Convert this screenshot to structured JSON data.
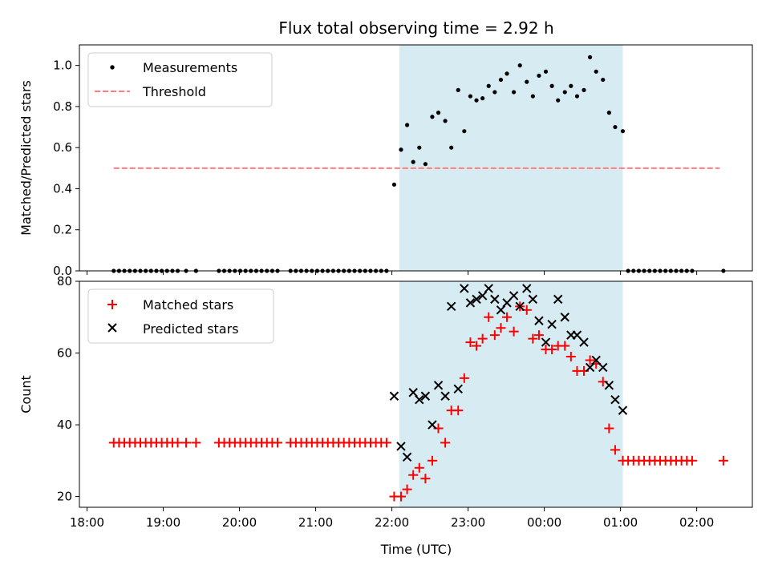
{
  "chart_data": {
    "title": "Flux total observing time = 2.92 h",
    "xlabel": "Time (UTC)",
    "x_tick_labels": [
      "18:00",
      "19:00",
      "20:00",
      "21:00",
      "22:00",
      "23:00",
      "00:00",
      "01:00",
      "02:00"
    ],
    "x_tick_hours": [
      18,
      19,
      20,
      21,
      22,
      23,
      24,
      25,
      26
    ],
    "xlim_hours": [
      17.9,
      26.73
    ],
    "shaded_span_hours": [
      22.1,
      25.03
    ],
    "shade_color": "#add8e6",
    "panels": [
      {
        "type": "scatter",
        "ylabel": "Matched/Predicted stars",
        "ylim": [
          0,
          1.1
        ],
        "y_ticks": [
          "0.0",
          "0.2",
          "0.4",
          "0.6",
          "0.8",
          "1.0"
        ],
        "y_tick_values": [
          0,
          0.2,
          0.4,
          0.6,
          0.8,
          1.0
        ],
        "legend_position": "upper-left",
        "series": [
          {
            "name": "Measurements",
            "marker": "dot",
            "color": "#000000",
            "x": [
              18.35,
              18.42,
              18.49,
              18.56,
              18.63,
              18.7,
              18.77,
              18.84,
              18.91,
              18.98,
              19.05,
              19.12,
              19.19,
              19.3,
              19.43,
              19.73,
              19.8,
              19.87,
              19.94,
              20.01,
              20.08,
              20.15,
              20.22,
              20.29,
              20.36,
              20.43,
              20.5,
              20.67,
              20.74,
              20.81,
              20.88,
              20.95,
              21.02,
              21.09,
              21.16,
              21.23,
              21.3,
              21.37,
              21.44,
              21.51,
              21.58,
              21.65,
              21.72,
              21.79,
              21.86,
              21.93,
              22.03,
              22.12,
              22.2,
              22.28,
              22.36,
              22.44,
              22.53,
              22.61,
              22.7,
              22.78,
              22.87,
              22.95,
              23.03,
              23.11,
              23.19,
              23.27,
              23.35,
              23.43,
              23.51,
              23.6,
              23.68,
              23.77,
              23.85,
              23.93,
              24.02,
              24.1,
              24.18,
              24.27,
              24.35,
              24.43,
              24.52,
              24.6,
              24.68,
              24.77,
              24.85,
              24.93,
              25.03,
              25.1,
              25.17,
              25.24,
              25.31,
              25.38,
              25.45,
              25.52,
              25.59,
              25.66,
              25.73,
              25.8,
              25.87,
              25.94,
              26.35
            ],
            "y": [
              0,
              0,
              0,
              0,
              0,
              0,
              0,
              0,
              0,
              0,
              0,
              0,
              0,
              0,
              0,
              0,
              0,
              0,
              0,
              0,
              0,
              0,
              0,
              0,
              0,
              0,
              0,
              0,
              0,
              0,
              0,
              0,
              0,
              0,
              0,
              0,
              0,
              0,
              0,
              0,
              0,
              0,
              0,
              0,
              0,
              0,
              0.42,
              0.59,
              0.71,
              0.53,
              0.6,
              0.52,
              0.75,
              0.77,
              0.73,
              0.6,
              0.88,
              0.68,
              0.85,
              0.83,
              0.84,
              0.9,
              0.87,
              0.93,
              0.96,
              0.87,
              1.0,
              0.92,
              0.85,
              0.95,
              0.97,
              0.9,
              0.83,
              0.87,
              0.9,
              0.85,
              0.88,
              1.04,
              0.97,
              0.93,
              0.77,
              0.7,
              0.68,
              0,
              0,
              0,
              0,
              0,
              0,
              0,
              0,
              0,
              0,
              0,
              0,
              0,
              0
            ]
          },
          {
            "name": "Threshold",
            "marker": "dashed-line",
            "color": "#ff7f7f",
            "x": [
              18.35,
              26.3
            ],
            "y": [
              0.5,
              0.5
            ]
          }
        ]
      },
      {
        "type": "scatter",
        "ylabel": "Count",
        "ylim": [
          17,
          80
        ],
        "y_ticks": [
          "20",
          "40",
          "60",
          "80"
        ],
        "y_tick_values": [
          20,
          40,
          60,
          80
        ],
        "legend_position": "upper-left",
        "series": [
          {
            "name": "Matched stars",
            "marker": "plus",
            "color": "#ff0000",
            "x": [
              18.35,
              18.42,
              18.49,
              18.56,
              18.63,
              18.7,
              18.77,
              18.84,
              18.91,
              18.98,
              19.05,
              19.12,
              19.19,
              19.3,
              19.43,
              19.73,
              19.8,
              19.87,
              19.94,
              20.01,
              20.08,
              20.15,
              20.22,
              20.29,
              20.36,
              20.43,
              20.5,
              20.67,
              20.74,
              20.81,
              20.88,
              20.95,
              21.02,
              21.09,
              21.16,
              21.23,
              21.3,
              21.37,
              21.44,
              21.51,
              21.58,
              21.65,
              21.72,
              21.79,
              21.86,
              21.93,
              22.03,
              22.12,
              22.2,
              22.28,
              22.36,
              22.44,
              22.53,
              22.61,
              22.7,
              22.78,
              22.87,
              22.95,
              23.03,
              23.11,
              23.19,
              23.27,
              23.35,
              23.43,
              23.51,
              23.6,
              23.68,
              23.77,
              23.85,
              23.93,
              24.02,
              24.1,
              24.18,
              24.27,
              24.35,
              24.43,
              24.52,
              24.6,
              24.68,
              24.77,
              24.85,
              24.93,
              25.03,
              25.1,
              25.17,
              25.24,
              25.31,
              25.38,
              25.45,
              25.52,
              25.59,
              25.66,
              25.73,
              25.8,
              25.87,
              25.94,
              26.35
            ],
            "y": [
              35,
              35,
              35,
              35,
              35,
              35,
              35,
              35,
              35,
              35,
              35,
              35,
              35,
              35,
              35,
              35,
              35,
              35,
              35,
              35,
              35,
              35,
              35,
              35,
              35,
              35,
              35,
              35,
              35,
              35,
              35,
              35,
              35,
              35,
              35,
              35,
              35,
              35,
              35,
              35,
              35,
              35,
              35,
              35,
              35,
              35,
              20,
              20,
              22,
              26,
              28,
              25,
              30,
              39,
              35,
              44,
              44,
              53,
              63,
              62,
              64,
              70,
              65,
              67,
              70,
              66,
              73,
              72,
              64,
              65,
              61,
              61,
              62,
              62,
              59,
              55,
              55,
              58,
              57,
              52,
              39,
              33,
              30,
              30,
              30,
              30,
              30,
              30,
              30,
              30,
              30,
              30,
              30,
              30,
              30,
              30,
              30
            ]
          },
          {
            "name": "Predicted stars",
            "marker": "x",
            "color": "#000000",
            "x": [
              22.03,
              22.12,
              22.2,
              22.28,
              22.36,
              22.44,
              22.53,
              22.61,
              22.7,
              22.78,
              22.87,
              22.95,
              23.03,
              23.11,
              23.19,
              23.27,
              23.35,
              23.43,
              23.51,
              23.6,
              23.68,
              23.77,
              23.85,
              23.93,
              24.02,
              24.1,
              24.18,
              24.27,
              24.35,
              24.43,
              24.52,
              24.6,
              24.68,
              24.77,
              24.85,
              24.93,
              25.03
            ],
            "y": [
              48,
              34,
              31,
              49,
              47,
              48,
              40,
              51,
              48,
              73,
              50,
              78,
              74,
              75,
              76,
              78,
              75,
              72,
              74,
              76,
              73,
              78,
              75,
              69,
              63,
              68,
              75,
              70,
              65,
              65,
              63,
              56,
              58,
              56,
              51,
              47,
              44
            ]
          }
        ]
      }
    ]
  }
}
